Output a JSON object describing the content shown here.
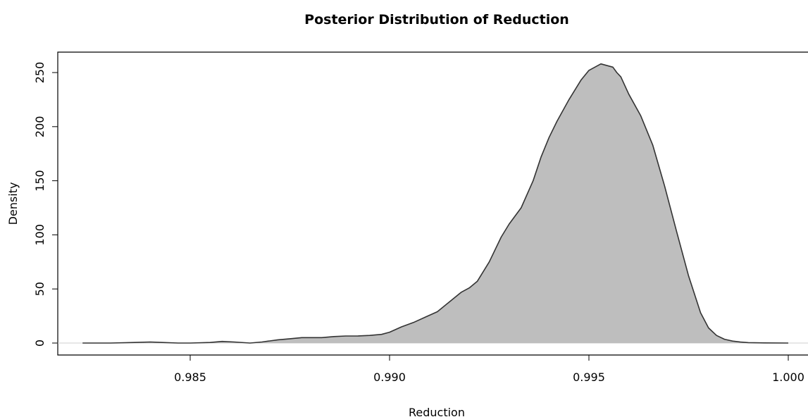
{
  "chart_data": {
    "type": "area",
    "title": "Posterior Distribution of Reduction",
    "xlabel": "Reduction",
    "ylabel": "Density",
    "xlim": [
      0.9823,
      1.0005
    ],
    "ylim": [
      0,
      260
    ],
    "x_ticks": [
      0.985,
      0.99,
      0.995,
      1.0
    ],
    "x_tick_labels": [
      "0.985",
      "0.990",
      "0.995",
      "1.000"
    ],
    "y_ticks": [
      0,
      50,
      100,
      150,
      200,
      250
    ],
    "y_tick_labels": [
      "0",
      "50",
      "100",
      "150",
      "200",
      "250"
    ],
    "grid": false,
    "zero_baseline": true,
    "fill_color": "#bebebe",
    "line_color": "#333333",
    "series": [
      {
        "x": [
          0.9823,
          0.983,
          0.9836,
          0.984,
          0.9843,
          0.9847,
          0.985,
          0.9855,
          0.9858,
          0.9861,
          0.9865,
          0.9868,
          0.9872,
          0.9875,
          0.9878,
          0.988,
          0.9883,
          0.9886,
          0.9889,
          0.9892,
          0.9895,
          0.9898,
          0.99,
          0.9903,
          0.9906,
          0.9909,
          0.9912,
          0.9915,
          0.9918,
          0.992,
          0.9922,
          0.9925,
          0.9928,
          0.993,
          0.9933,
          0.9936,
          0.9938,
          0.994,
          0.9942,
          0.9945,
          0.9948,
          0.995,
          0.9953,
          0.9956,
          0.9957,
          0.9958,
          0.996,
          0.9963,
          0.9966,
          0.9969,
          0.9972,
          0.9975,
          0.9978,
          0.998,
          0.9982,
          0.9984,
          0.9986,
          0.9988,
          0.999,
          0.9994,
          1.0
        ],
        "y": [
          0,
          0,
          0.5,
          1,
          0.5,
          0,
          0,
          0.5,
          1.5,
          1,
          0,
          1,
          3,
          4,
          5,
          5,
          5,
          6,
          6.5,
          6.5,
          7,
          8,
          10,
          15,
          19,
          24,
          29,
          38,
          47,
          51,
          57,
          75,
          98,
          110,
          125,
          150,
          172,
          190,
          205,
          225,
          243,
          252,
          258,
          255,
          250,
          246,
          230,
          210,
          183,
          145,
          103,
          62,
          28,
          14,
          7,
          3.5,
          1.8,
          0.9,
          0.4,
          0.1,
          0
        ]
      }
    ]
  }
}
